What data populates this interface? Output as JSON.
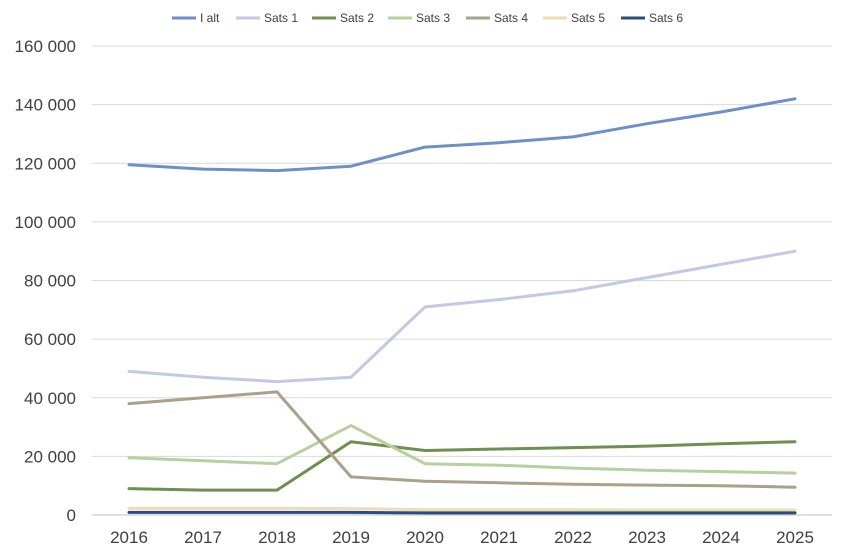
{
  "chart_data": {
    "type": "line",
    "title": "",
    "xlabel": "",
    "ylabel": "",
    "categories": [
      "2016",
      "2017",
      "2018",
      "2019",
      "2020",
      "2021",
      "2022",
      "2023",
      "2024",
      "2025"
    ],
    "ylim": [
      0,
      160000
    ],
    "yticks": [
      0,
      20000,
      40000,
      60000,
      80000,
      100000,
      120000,
      140000,
      160000
    ],
    "ytick_labels": [
      "0",
      "20 000",
      "40 000",
      "60 000",
      "80 000",
      "100 000",
      "120 000",
      "140 000",
      "160 000"
    ],
    "grid": true,
    "legend_position": "top",
    "series": [
      {
        "name": "I alt",
        "color": "#6f8fc7",
        "values": [
          119500,
          118000,
          117500,
          119000,
          125500,
          127000,
          129000,
          133500,
          137500,
          142000
        ]
      },
      {
        "name": "Sats 1",
        "color": "#c2cae3",
        "values": [
          49000,
          47000,
          45500,
          47000,
          71000,
          73500,
          76500,
          81000,
          85500,
          90000
        ]
      },
      {
        "name": "Sats 2",
        "color": "#6e8f4f",
        "values": [
          9000,
          8500,
          8500,
          25000,
          22000,
          22500,
          23000,
          23500,
          24300,
          25000
        ]
      },
      {
        "name": "Sats 3",
        "color": "#b6d09f",
        "values": [
          19500,
          18500,
          17500,
          30500,
          17500,
          17000,
          16000,
          15300,
          14800,
          14300
        ]
      },
      {
        "name": "Sats 4",
        "color": "#aba08a",
        "values": [
          38000,
          40000,
          42000,
          13000,
          11500,
          11000,
          10500,
          10200,
          10000,
          9500
        ]
      },
      {
        "name": "Sats 5",
        "color": "#efdcb1",
        "values": [
          2300,
          2300,
          2300,
          2200,
          1800,
          1800,
          1800,
          1700,
          1700,
          1700
        ]
      },
      {
        "name": "Sats 6",
        "color": "#2b4c80",
        "values": [
          900,
          900,
          900,
          900,
          700,
          700,
          700,
          700,
          700,
          700
        ]
      }
    ]
  }
}
